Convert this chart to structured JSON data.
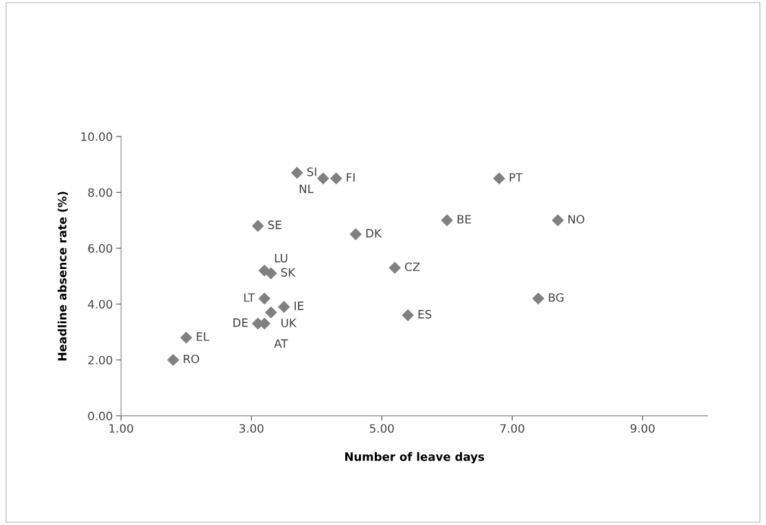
{
  "chart_data": {
    "type": "scatter",
    "xlabel": "Number of leave days",
    "ylabel": "Headline absence rate (%)",
    "x": [
      3.7,
      4.1,
      4.3,
      6.8,
      3.1,
      4.6,
      6.0,
      7.7,
      5.2,
      3.2,
      3.3,
      3.2,
      7.4,
      3.5,
      3.3,
      5.4,
      3.2,
      3.1,
      2.0,
      1.8
    ],
    "values": [
      8.7,
      8.5,
      8.5,
      8.5,
      6.8,
      6.5,
      7.0,
      7.0,
      5.3,
      5.2,
      5.1,
      4.2,
      4.2,
      3.9,
      3.7,
      3.6,
      3.3,
      3.3,
      2.8,
      2.0
    ],
    "color": "#808080",
    "marker": "diamond",
    "grid": false,
    "xlim": [
      1,
      10
    ],
    "xticks": [
      {
        "value": 1,
        "label": "1.00"
      },
      {
        "value": 3,
        "label": "3.00"
      },
      {
        "value": 5,
        "label": "5.00"
      },
      {
        "value": 7,
        "label": "7.00"
      },
      {
        "value": 9,
        "label": "9.00"
      }
    ],
    "ylim": [
      0,
      10
    ],
    "yticks": [
      {
        "value": 0,
        "label": "0.00"
      },
      {
        "value": 2,
        "label": "2.00"
      },
      {
        "value": 4,
        "label": "4.00"
      },
      {
        "value": 6,
        "label": "6.00"
      },
      {
        "value": 8,
        "label": "8.00"
      },
      {
        "value": 10,
        "label": "10.00"
      }
    ],
    "annotations": [
      {
        "text": "SI",
        "x": 3.7,
        "y": 8.7
      },
      {
        "text": "NL",
        "x": 4.1,
        "y": 8.5
      },
      {
        "text": "FI",
        "x": 4.3,
        "y": 8.5
      },
      {
        "text": "PT",
        "x": 6.8,
        "y": 8.5
      },
      {
        "text": "SE",
        "x": 3.1,
        "y": 6.8
      },
      {
        "text": "DK",
        "x": 4.6,
        "y": 6.5
      },
      {
        "text": "BE",
        "x": 6.0,
        "y": 7.0
      },
      {
        "text": "NO",
        "x": 7.7,
        "y": 7.0
      },
      {
        "text": "CZ",
        "x": 5.2,
        "y": 5.3
      },
      {
        "text": "LU",
        "x": 3.2,
        "y": 5.2
      },
      {
        "text": "SK",
        "x": 3.3,
        "y": 5.1
      },
      {
        "text": "LT",
        "x": 3.2,
        "y": 4.2
      },
      {
        "text": "BG",
        "x": 7.4,
        "y": 4.2
      },
      {
        "text": "IE",
        "x": 3.5,
        "y": 3.9
      },
      {
        "text": "UK",
        "x": 3.3,
        "y": 3.7
      },
      {
        "text": "ES",
        "x": 5.4,
        "y": 3.6
      },
      {
        "text": "AT",
        "x": 3.2,
        "y": 3.3
      },
      {
        "text": "DE",
        "x": 3.1,
        "y": 3.3
      },
      {
        "text": "EL",
        "x": 2.0,
        "y": 2.8
      },
      {
        "text": "RO",
        "x": 1.8,
        "y": 2.0
      }
    ]
  }
}
